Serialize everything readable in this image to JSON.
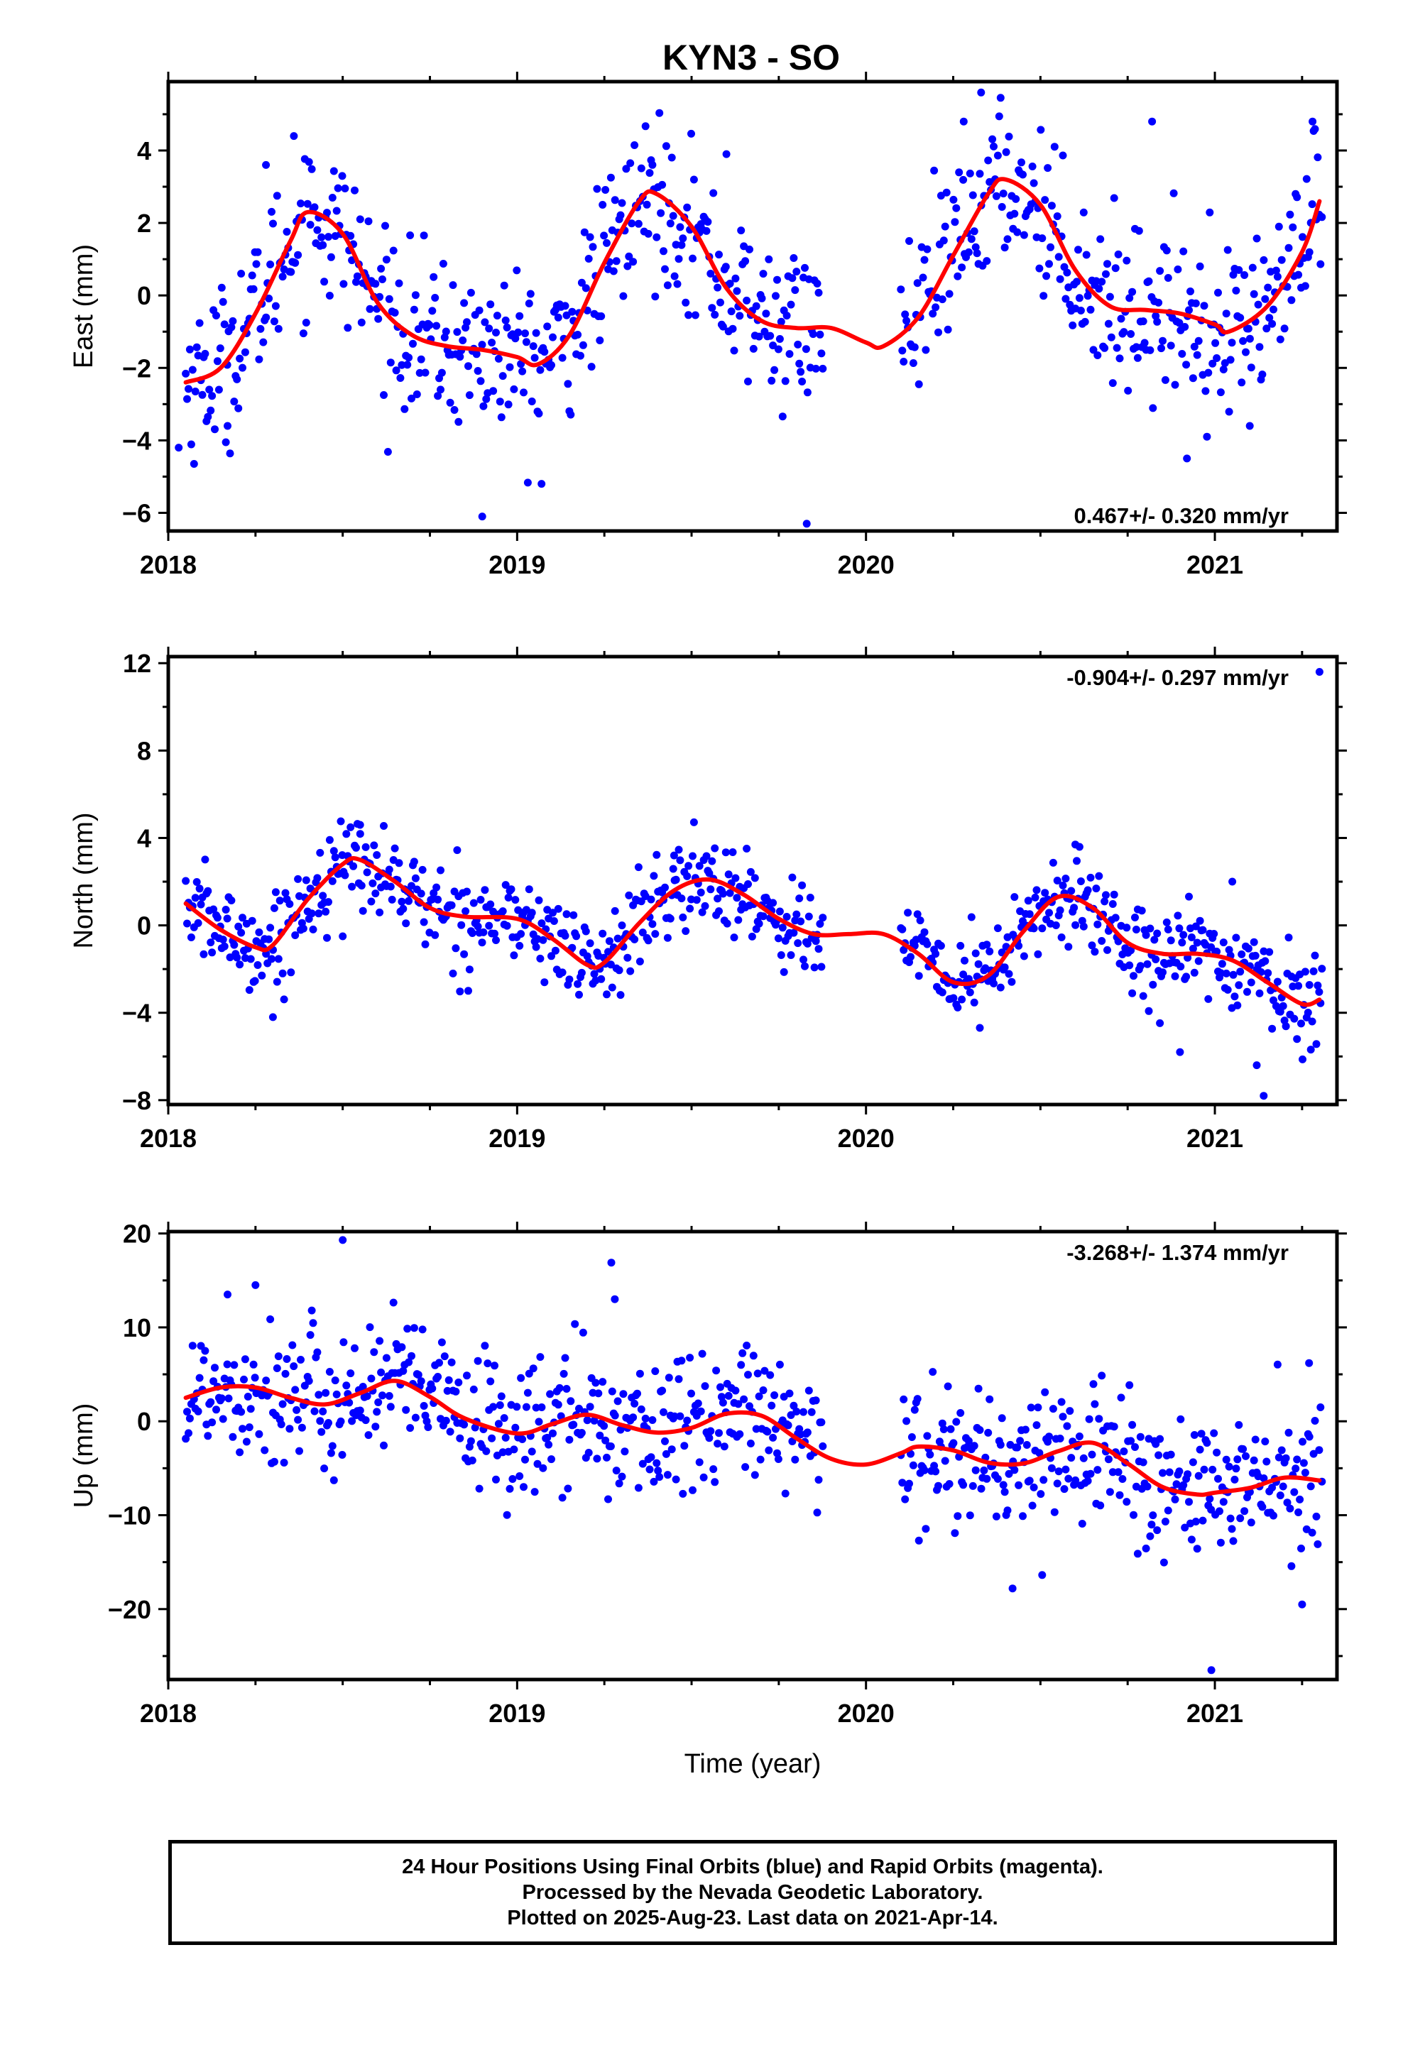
{
  "title": "KYN3 - SO",
  "colors": {
    "final_orbits": "#0000ff",
    "rapid_orbits": "#ff00ff",
    "model": "#ff0000",
    "frame": "#000000"
  },
  "chart_data": [
    {
      "type": "scatter",
      "component": "east",
      "ylabel": "East (mm)",
      "xlabel": "",
      "rate_label": "0.467+/- 0.320 mm/yr",
      "xlim": [
        2018.0,
        2021.35
      ],
      "ylim": [
        -6.5,
        5.9
      ],
      "xticks": [
        2018,
        2019,
        2020,
        2021
      ],
      "xtick_labels": [
        "2018",
        "2019",
        "2020",
        "2021"
      ],
      "yticks": [
        -6,
        -4,
        -2,
        0,
        2,
        4
      ],
      "ytick_labels": [
        "−6",
        "−4",
        "−2",
        "0",
        "2",
        "4"
      ],
      "grid": false,
      "model_curve": {
        "x": [
          2018.05,
          2018.15,
          2018.25,
          2018.35,
          2018.4,
          2018.5,
          2018.6,
          2018.7,
          2018.8,
          2018.9,
          2019.0,
          2019.06,
          2019.15,
          2019.25,
          2019.35,
          2019.4,
          2019.5,
          2019.6,
          2019.7,
          2019.8,
          2019.9,
          2020.0,
          2020.05,
          2020.15,
          2020.25,
          2020.35,
          2020.4,
          2020.5,
          2020.6,
          2020.7,
          2020.8,
          2020.9,
          2021.0,
          2021.04,
          2021.15,
          2021.25,
          2021.3
        ],
        "y": [
          -2.4,
          -2.0,
          -0.5,
          1.5,
          2.3,
          1.7,
          -0.2,
          -1.1,
          -1.4,
          -1.5,
          -1.7,
          -1.9,
          -1.1,
          0.9,
          2.6,
          2.8,
          1.9,
          0.2,
          -0.7,
          -0.9,
          -0.9,
          -1.3,
          -1.4,
          -0.6,
          1.1,
          2.8,
          3.2,
          2.5,
          0.7,
          -0.3,
          -0.4,
          -0.5,
          -0.8,
          -1.0,
          -0.3,
          1.2,
          2.6
        ]
      },
      "series_generation": {
        "segments": [
          [
            2018.05,
            2019.88
          ],
          [
            2020.1,
            2021.31
          ]
        ],
        "spacing_days": 1.45,
        "scatter_sd": 1.1
      },
      "outliers": {
        "x": [
          2018.03,
          2018.17,
          2018.28,
          2018.36,
          2018.9,
          2019.07,
          2019.6,
          2019.83,
          2020.28,
          2020.33,
          2020.82,
          2020.92,
          2021.1,
          2021.28
        ],
        "y": [
          -4.2,
          -3.6,
          3.6,
          4.4,
          -6.1,
          -5.2,
          3.9,
          -6.3,
          4.8,
          5.6,
          4.8,
          -4.5,
          -3.6,
          4.8
        ]
      }
    },
    {
      "type": "scatter",
      "component": "north",
      "ylabel": "North (mm)",
      "xlabel": "",
      "rate_label": "-0.904+/- 0.297 mm/yr",
      "xlim": [
        2018.0,
        2021.35
      ],
      "ylim": [
        -8.2,
        12.3
      ],
      "xticks": [
        2018,
        2019,
        2020,
        2021
      ],
      "xtick_labels": [
        "2018",
        "2019",
        "2020",
        "2021"
      ],
      "yticks": [
        -8,
        -4,
        0,
        4,
        8,
        12
      ],
      "ytick_labels": [
        "−8",
        "−4",
        "0",
        "4",
        "8",
        "12"
      ],
      "grid": false,
      "model_curve": {
        "x": [
          2018.05,
          2018.15,
          2018.25,
          2018.3,
          2018.4,
          2018.5,
          2018.55,
          2018.65,
          2018.75,
          2018.85,
          2019.0,
          2019.1,
          2019.2,
          2019.25,
          2019.35,
          2019.45,
          2019.55,
          2019.65,
          2019.75,
          2019.85,
          2019.95,
          2020.05,
          2020.15,
          2020.25,
          2020.35,
          2020.45,
          2020.55,
          2020.65,
          2020.75,
          2020.85,
          2020.95,
          2021.05,
          2021.15,
          2021.25,
          2021.3
        ],
        "y": [
          1.0,
          -0.2,
          -1.0,
          -0.9,
          1.2,
          2.8,
          3.0,
          2.0,
          0.8,
          0.4,
          0.3,
          -0.6,
          -1.8,
          -1.7,
          0.1,
          1.6,
          2.1,
          1.4,
          0.3,
          -0.4,
          -0.4,
          -0.4,
          -1.3,
          -2.6,
          -2.3,
          -0.3,
          1.3,
          0.8,
          -0.8,
          -1.3,
          -1.3,
          -1.6,
          -2.6,
          -3.6,
          -3.4
        ]
      },
      "series_generation": {
        "segments": [
          [
            2018.05,
            2019.88
          ],
          [
            2020.1,
            2021.31
          ]
        ],
        "spacing_days": 1.45,
        "scatter_sd": 1.05
      },
      "outliers": {
        "x": [
          2018.3,
          2018.5,
          2018.55,
          2019.45,
          2020.6,
          2020.9,
          2021.05,
          2021.12,
          2021.14,
          2021.3
        ],
        "y": [
          -4.2,
          -0.5,
          4.6,
          3.2,
          3.7,
          -5.8,
          2.0,
          -6.4,
          -7.8,
          11.6
        ]
      }
    },
    {
      "type": "scatter",
      "component": "up",
      "ylabel": "Up (mm)",
      "xlabel": "Time (year)",
      "rate_label": "-3.268+/- 1.374 mm/yr",
      "xlim": [
        2018.0,
        2021.35
      ],
      "ylim": [
        -27.5,
        20.2
      ],
      "xticks": [
        2018,
        2019,
        2020,
        2021
      ],
      "xtick_labels": [
        "2018",
        "2019",
        "2020",
        "2021"
      ],
      "yticks": [
        -20,
        -10,
        0,
        10,
        20
      ],
      "ytick_labels": [
        "−20",
        "−10",
        "0",
        "10",
        "20"
      ],
      "grid": false,
      "model_curve": {
        "x": [
          2018.05,
          2018.15,
          2018.25,
          2018.35,
          2018.45,
          2018.55,
          2018.65,
          2018.75,
          2018.85,
          2019.0,
          2019.1,
          2019.2,
          2019.3,
          2019.4,
          2019.5,
          2019.6,
          2019.7,
          2019.8,
          2019.9,
          2020.0,
          2020.1,
          2020.15,
          2020.25,
          2020.35,
          2020.45,
          2020.55,
          2020.65,
          2020.75,
          2020.85,
          2020.95,
          2021.0,
          2021.1,
          2021.2,
          2021.3
        ],
        "y": [
          2.5,
          3.6,
          3.6,
          2.5,
          1.8,
          3.0,
          4.3,
          2.6,
          0.3,
          -1.3,
          -0.3,
          0.7,
          -0.4,
          -1.2,
          -0.7,
          0.8,
          0.6,
          -1.8,
          -4.0,
          -4.6,
          -3.4,
          -2.7,
          -3.1,
          -4.4,
          -4.5,
          -3.2,
          -2.3,
          -4.5,
          -7.0,
          -7.8,
          -7.6,
          -7.1,
          -6.0,
          -6.3
        ]
      },
      "series_generation": {
        "segments": [
          [
            2018.05,
            2019.88
          ],
          [
            2020.1,
            2021.31
          ]
        ],
        "spacing_days": 1.45,
        "scatter_sd": 3.8
      },
      "outliers": {
        "x": [
          2018.5,
          2018.25,
          2018.17,
          2019.27,
          2019.28,
          2020.42,
          2020.99,
          2021.25,
          2021.27
        ],
        "y": [
          19.3,
          14.5,
          13.5,
          16.9,
          13.0,
          -17.8,
          -26.5,
          -19.5,
          6.2
        ]
      }
    }
  ],
  "footer": {
    "line1": "24 Hour Positions Using Final Orbits (blue) and Rapid Orbits (magenta).",
    "line2": "Processed by the Nevada Geodetic Laboratory.",
    "line3": "Plotted on 2025-Aug-23. Last data on 2021-Apr-14."
  }
}
